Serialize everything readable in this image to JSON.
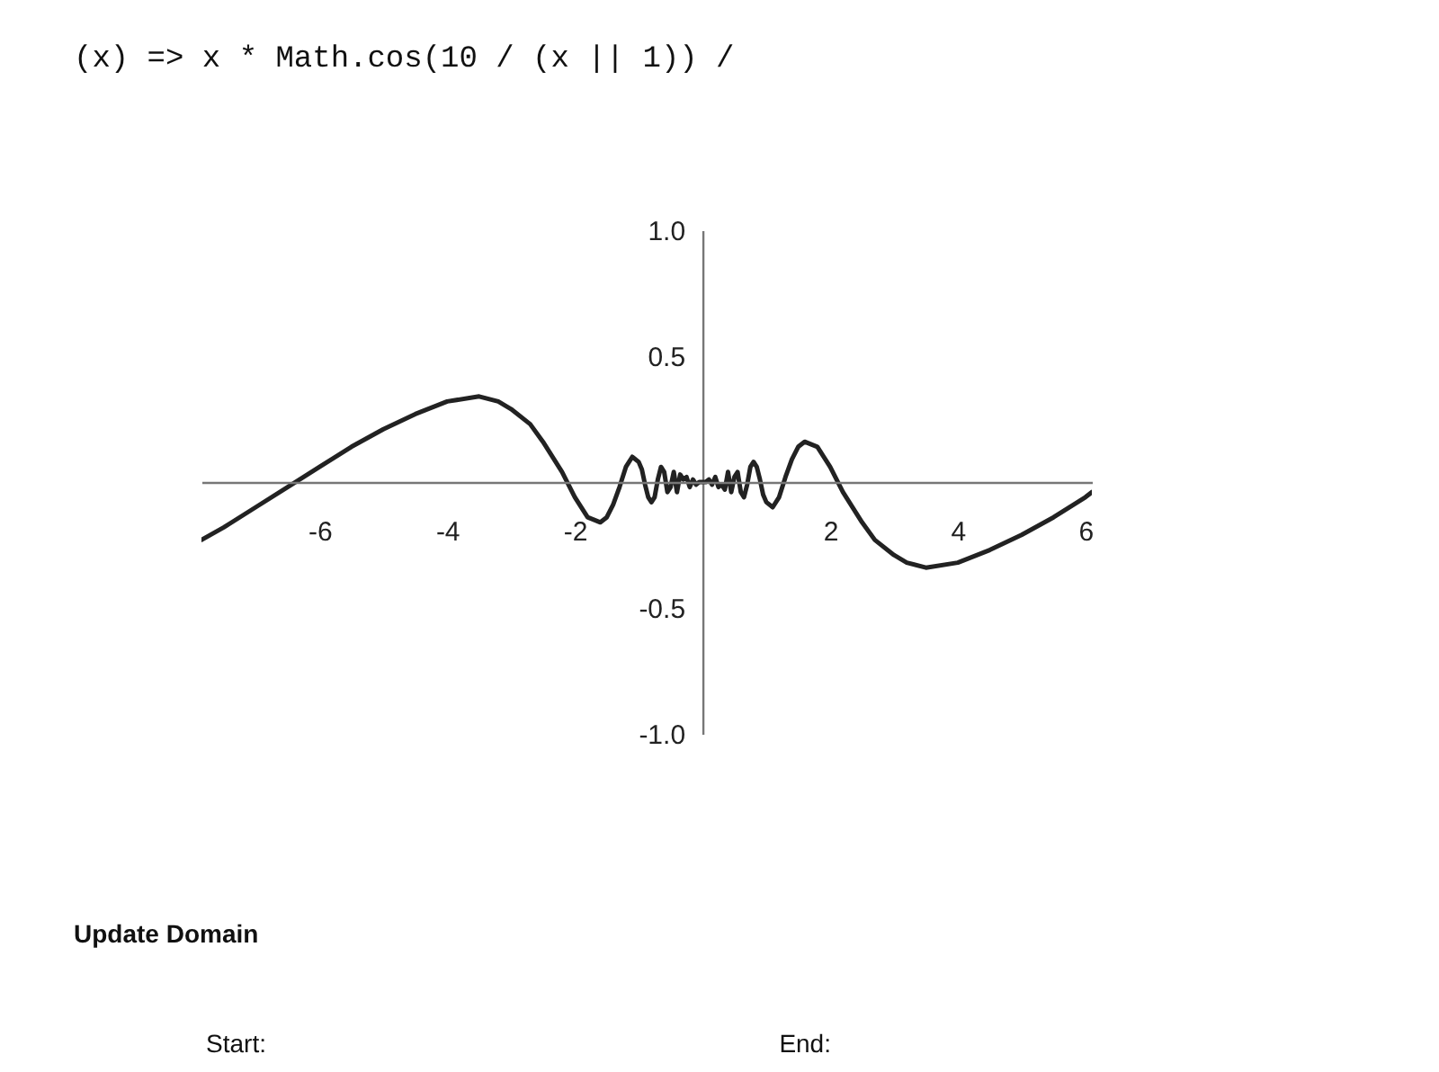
{
  "chart_data": {
    "type": "line",
    "x": [
      -7.85,
      -7.5,
      -7,
      -6.5,
      -6,
      -5.5,
      -5,
      -4.5,
      -4,
      -3.5,
      -3.2,
      -3,
      -2.7,
      -2.5,
      -2.2,
      -2,
      -1.8,
      -1.6,
      -1.5,
      -1.4,
      -1.3,
      -1.2,
      -1.1,
      -1,
      -0.95,
      -0.9,
      -0.85,
      -0.8,
      -0.75,
      -0.7,
      -0.65,
      -0.6,
      -0.55,
      -0.5,
      -0.45,
      -0.4,
      -0.35,
      -0.3,
      -0.25,
      -0.2,
      -0.15,
      -0.1,
      -0.05,
      0,
      0.05,
      0.1,
      0.15,
      0.2,
      0.25,
      0.3,
      0.35,
      0.4,
      0.45,
      0.5,
      0.55,
      0.6,
      0.65,
      0.7,
      0.75,
      0.8,
      0.85,
      0.9,
      0.95,
      1,
      1.1,
      1.2,
      1.3,
      1.4,
      1.5,
      1.6,
      1.8,
      2,
      2.2,
      2.5,
      2.7,
      3,
      3.2,
      3.5,
      4,
      4.5,
      5,
      5.5,
      6,
      6.1
    ],
    "series": [
      {
        "color": "#222222",
        "values": [
          -0.23,
          -0.18,
          -0.1,
          -0.02,
          0.06,
          0.14,
          0.21,
          0.27,
          0.32,
          0.34,
          0.32,
          0.29,
          0.23,
          0.16,
          0.04,
          -0.06,
          -0.14,
          -0.16,
          -0.14,
          -0.09,
          -0.02,
          0.06,
          0.1,
          0.08,
          0.05,
          -0.01,
          -0.06,
          -0.08,
          -0.06,
          0.01,
          0.06,
          0.04,
          -0.04,
          -0.02,
          0.04,
          -0.04,
          0.03,
          0.01,
          0.02,
          -0.02,
          0.01,
          -0.01,
          0,
          0,
          0,
          0.01,
          -0.01,
          0.02,
          -0.02,
          -0.01,
          -0.03,
          0.04,
          -0.04,
          0.02,
          0.04,
          -0.04,
          -0.06,
          -0.01,
          0.06,
          0.08,
          0.06,
          0.01,
          -0.05,
          -0.08,
          -0.1,
          -0.06,
          0.02,
          0.09,
          0.14,
          0.16,
          0.14,
          0.06,
          -0.04,
          -0.16,
          -0.23,
          -0.29,
          -0.32,
          -0.34,
          -0.32,
          -0.27,
          -0.21,
          -0.14,
          -0.06,
          -0.04
        ]
      }
    ],
    "xlim": [
      -7.85,
      6.1
    ],
    "ylim": [
      -1.0,
      1.0
    ],
    "xticks": [
      -6,
      -4,
      -2,
      2,
      4,
      6
    ],
    "yticks": [
      {
        "value": 1.0,
        "label": "1.0"
      },
      {
        "value": 0.5,
        "label": "0.5"
      },
      {
        "value": -0.5,
        "label": "-0.5"
      },
      {
        "value": -1.0,
        "label": "-1.0"
      }
    ],
    "grid": false,
    "legend": false,
    "line_style": "solid",
    "annotations": [
      "(x) => x * Math.cos(10 / (x || 1)) /",
      "Update Domain",
      "Start:",
      "End:"
    ]
  }
}
